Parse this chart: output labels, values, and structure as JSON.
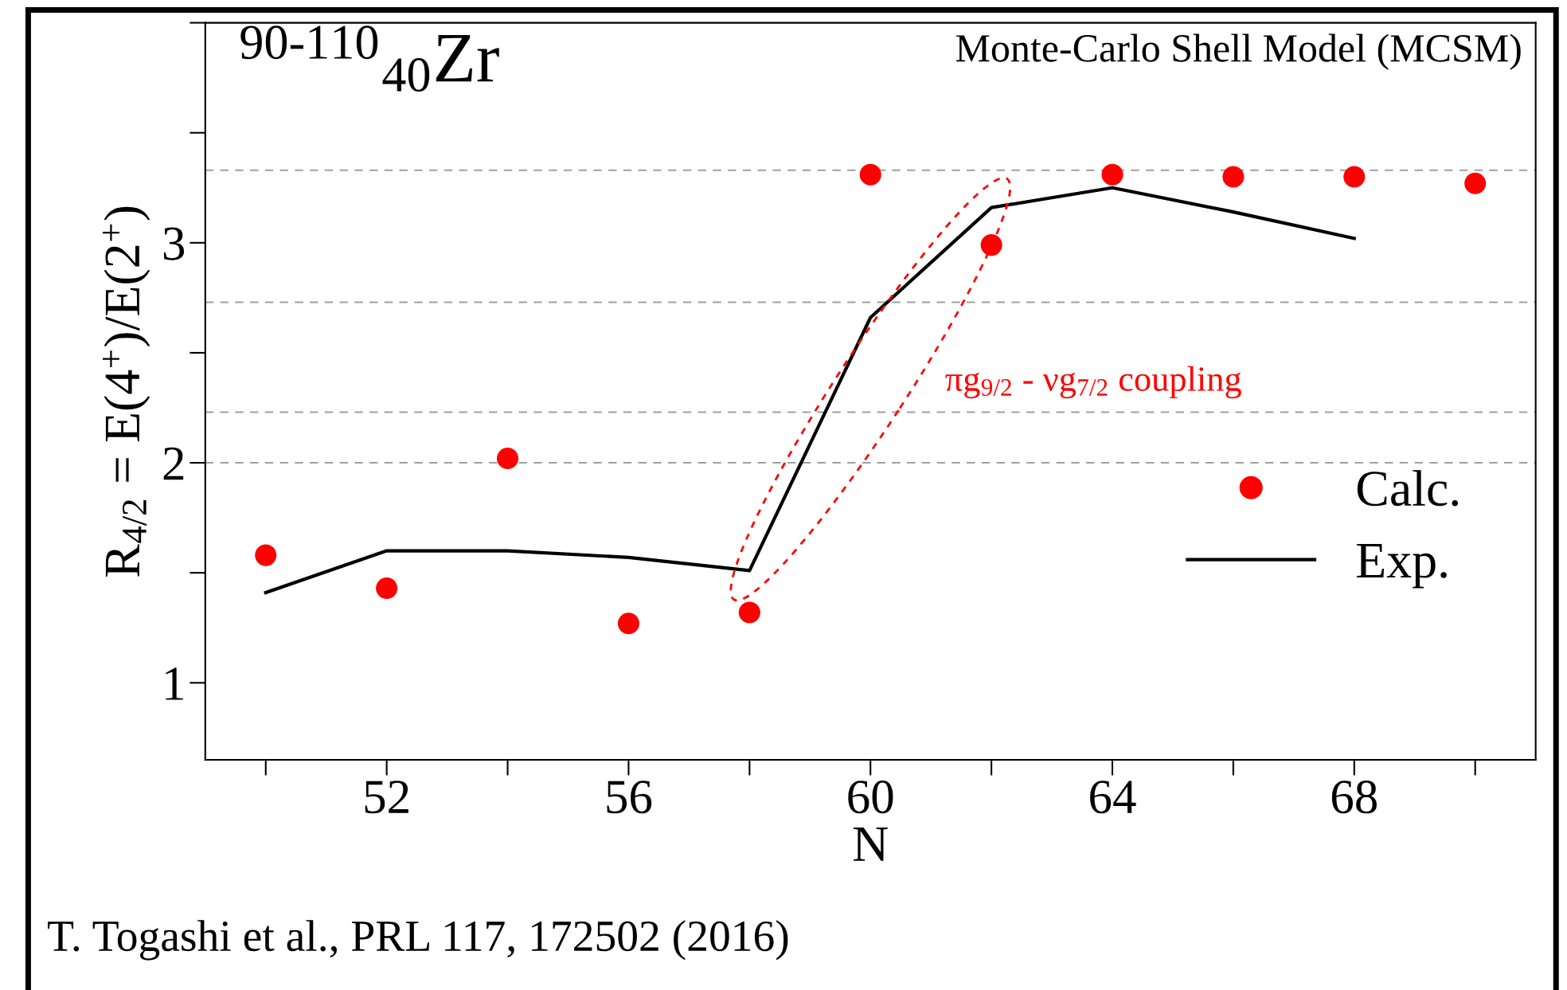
{
  "chart_data": {
    "type": "scatter",
    "title": "$^{90-110}$$_{40}$Zr",
    "subtitle": "Monte-Carlo Shell Model (MCSM)",
    "xlabel": "N",
    "ylabel": "R$_{4/2}$ = E(4$^{+}$)/E(2$^{+}$)",
    "x": [
      50,
      52,
      54,
      56,
      58,
      60,
      62,
      64,
      66,
      68,
      70
    ],
    "series": [
      {
        "name": "Calc.",
        "color": "#ff0000",
        "marker": "circle",
        "values": [
          1.58,
          1.43,
          2.02,
          1.27,
          1.32,
          3.31,
          2.99,
          3.31,
          3.3,
          3.3,
          3.27
        ]
      },
      {
        "name": "Exp.",
        "type": "line",
        "color": "#000000",
        "marker": "none",
        "line_style": "solid",
        "values": [
          1.41,
          1.6,
          1.6,
          1.57,
          1.51,
          2.66,
          3.16,
          3.25,
          3.14,
          3.02,
          null
        ]
      }
    ],
    "xlim": [
      49,
      71
    ],
    "ylim": [
      0.65,
      4.0
    ],
    "xticks": [
      52,
      56,
      60,
      64,
      68
    ],
    "yticks": [
      1,
      2,
      3
    ],
    "ref_lines": [
      {
        "axis": "y",
        "value": 3.33,
        "color": "#a0a0a0",
        "line_style": "dashed"
      },
      {
        "axis": "y",
        "value": 2.73,
        "color": "#a0a0a0",
        "line_style": "dashed"
      },
      {
        "axis": "y",
        "value": 2.23,
        "color": "#a0a0a0",
        "line_style": "dashed"
      },
      {
        "axis": "y",
        "value": 2.0,
        "color": "#a0a0a0",
        "line_style": "dashed"
      }
    ],
    "annotations": [
      "πg$_{9/2}$ - νg$_{7/2}$ coupling",
      "T. Togashi et al., PRL 117, 172502 (2016)"
    ],
    "grid": false,
    "legend": "bottom right"
  }
}
